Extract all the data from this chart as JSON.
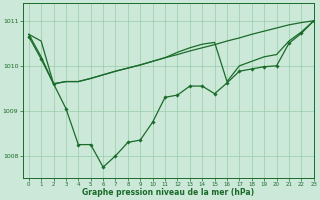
{
  "background_color": "#cce8d8",
  "grid_color": "#99ccaa",
  "line_color": "#1a6b2a",
  "xlabel": "Graphe pression niveau de la mer (hPa)",
  "xlim": [
    -0.5,
    23
  ],
  "ylim": [
    1007.5,
    1011.4
  ],
  "yticks": [
    1008,
    1009,
    1010,
    1011
  ],
  "xticks": [
    0,
    1,
    2,
    3,
    4,
    5,
    6,
    7,
    8,
    9,
    10,
    11,
    12,
    13,
    14,
    15,
    16,
    17,
    18,
    19,
    20,
    21,
    22,
    23
  ],
  "series": [
    {
      "x": [
        0,
        1,
        2,
        3,
        4,
        5,
        6,
        7,
        8,
        9,
        10,
        11,
        12,
        13,
        14,
        15,
        16,
        17,
        18,
        19,
        20,
        21,
        22,
        23
      ],
      "y": [
        1010.7,
        1010.55,
        1009.6,
        1009.65,
        1009.65,
        1009.72,
        1009.8,
        1009.88,
        1009.95,
        1010.02,
        1010.1,
        1010.18,
        1010.25,
        1010.33,
        1010.4,
        1010.47,
        1010.55,
        1010.62,
        1010.7,
        1010.77,
        1010.84,
        1010.91,
        1010.96,
        1011.0
      ],
      "marker": false,
      "lw": 0.9
    },
    {
      "x": [
        0,
        1,
        2,
        3,
        4,
        5,
        6,
        7,
        8,
        9,
        10,
        11,
        12,
        13,
        14,
        15,
        16,
        17,
        18,
        19,
        20,
        21,
        22,
        23
      ],
      "y": [
        1010.7,
        1010.2,
        1009.6,
        1009.65,
        1009.65,
        1009.72,
        1009.8,
        1009.88,
        1009.95,
        1010.02,
        1010.1,
        1010.18,
        1010.3,
        1010.4,
        1010.48,
        1010.52,
        1009.65,
        1010.0,
        1010.1,
        1010.2,
        1010.25,
        1010.55,
        1010.75,
        1011.0
      ],
      "marker": false,
      "lw": 0.9
    },
    {
      "x": [
        0,
        1,
        2,
        3,
        4,
        5,
        6,
        7,
        8,
        9,
        10,
        11,
        12,
        13,
        14,
        15,
        16,
        17,
        18,
        19,
        20,
        21,
        22,
        23
      ],
      "y": [
        1010.65,
        1010.15,
        1009.6,
        1009.05,
        1008.25,
        1008.25,
        1007.75,
        1008.0,
        1008.3,
        1008.35,
        1008.75,
        1009.3,
        1009.35,
        1009.55,
        1009.55,
        1009.38,
        1009.62,
        1009.88,
        1009.93,
        1009.98,
        1010.0,
        1010.5,
        1010.72,
        1011.0
      ],
      "marker": true,
      "lw": 0.9
    }
  ]
}
